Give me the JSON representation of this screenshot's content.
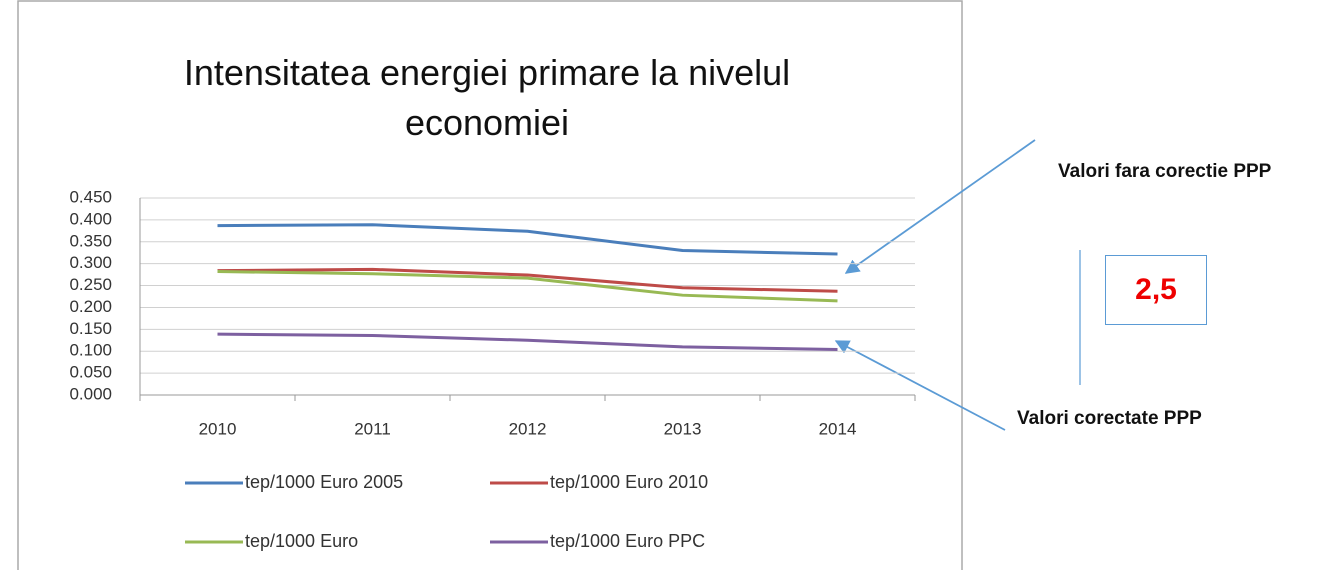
{
  "chart_data": {
    "type": "line",
    "title": "Intensitatea energiei primare la nivelul economiei",
    "categories": [
      "2010",
      "2011",
      "2012",
      "2013",
      "2014"
    ],
    "series": [
      {
        "name": "tep/1000 Euro 2005",
        "color": "#4a7ebb",
        "values": [
          0.387,
          0.389,
          0.374,
          0.33,
          0.322
        ]
      },
      {
        "name": "tep/1000 Euro 2010",
        "color": "#be4b48",
        "values": [
          0.284,
          0.287,
          0.274,
          0.245,
          0.237
        ]
      },
      {
        "name": "tep/1000 Euro",
        "color": "#98b954",
        "values": [
          0.282,
          0.277,
          0.267,
          0.228,
          0.215
        ]
      },
      {
        "name": "tep/1000 Euro PPC",
        "color": "#7d60a0",
        "values": [
          0.139,
          0.136,
          0.125,
          0.11,
          0.104
        ]
      }
    ],
    "ylim": [
      0,
      0.45
    ],
    "yticks": [
      {
        "value": 0,
        "label": "0.000"
      },
      {
        "value": 0.05,
        "label": "0.050"
      },
      {
        "value": 0.1,
        "label": "0.100"
      },
      {
        "value": 0.15,
        "label": "0.150"
      },
      {
        "value": 0.2,
        "label": "0.200"
      },
      {
        "value": 0.25,
        "label": "0.250"
      },
      {
        "value": 0.3,
        "label": "0.300"
      },
      {
        "value": 0.35,
        "label": "0.350"
      },
      {
        "value": 0.4,
        "label": "0.400"
      },
      {
        "value": 0.45,
        "label": "0.450"
      }
    ],
    "grid": true,
    "legend": "bottom",
    "annotations": [
      "Valori fara corectie PPP",
      "Valori corectate PPP",
      "2,5"
    ]
  }
}
